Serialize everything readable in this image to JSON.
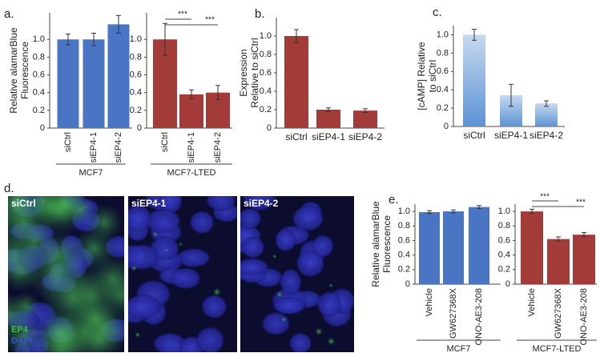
{
  "chart_data": [
    {
      "type": "bar",
      "panel": "a.",
      "ylabel": [
        "Relative alamarBlue",
        "Fluorescence"
      ],
      "group": "MCF7",
      "categories": [
        "siCtrl",
        "siEP4-1",
        "siEP4-2"
      ],
      "values": [
        1.0,
        1.0,
        1.17
      ],
      "errors": [
        0.06,
        0.07,
        0.1
      ],
      "color": "#4a74c4",
      "ylim": [
        0,
        1.3
      ],
      "yticks": [
        0,
        0.2,
        0.4,
        0.6,
        0.8,
        {
          "value": 1,
          "label": "1.0"
        }
      ]
    },
    {
      "type": "bar",
      "group": "MCF7-LTED",
      "categories": [
        "siCtrl",
        "siEP4-1",
        "siEP4-2"
      ],
      "values": [
        1.0,
        0.38,
        0.4
      ],
      "errors": [
        0.18,
        0.05,
        0.08
      ],
      "color": "#a33b38",
      "ylim": [
        0,
        1.3
      ],
      "yticks": [
        0,
        0.2,
        0.4,
        0.6,
        0.8,
        {
          "value": 1,
          "label": "1.0"
        }
      ],
      "brackets": [
        {
          "label": "***",
          "categories": [
            "siCtrl",
            "siEP4-1"
          ]
        },
        {
          "label": "***",
          "categories": [
            "siCtrl",
            "siEP4-2"
          ]
        }
      ]
    },
    {
      "type": "bar",
      "panel": "b.",
      "ylabel": [
        "Expression",
        "Relative to siCtrl"
      ],
      "categories": [
        "siCtrl",
        "siEP4-1",
        "siEP4-2"
      ],
      "values": [
        1.0,
        0.2,
        0.19
      ],
      "errors": [
        0.07,
        0.02,
        0.02
      ],
      "color": "#a33b38",
      "ylim": [
        0,
        1.2
      ],
      "yticks": [
        0,
        0.2,
        0.4,
        0.6,
        0.8,
        {
          "value": 1,
          "label": "1.0"
        }
      ]
    },
    {
      "type": "bar",
      "panel": "c.",
      "ylabel": [
        "[cAMP] Relative",
        "to siCtrl"
      ],
      "categories": [
        "siCtrl",
        "siEP4-1",
        "siEP4-2"
      ],
      "values": [
        1.0,
        0.34,
        0.25
      ],
      "errors": [
        0.06,
        0.12,
        0.03
      ],
      "color": "#5b93d3",
      "fill_style": "gradient",
      "ylim": [
        0,
        1.1
      ],
      "yticks": [
        0,
        0.2,
        0.4,
        0.6,
        0.8,
        {
          "value": 1,
          "label": "1.0"
        }
      ]
    },
    {
      "type": "bar",
      "panel": "e.",
      "ylabel": [
        "Relative alamarBlue",
        "Fluorescence"
      ],
      "group": "MCF7",
      "categories": [
        "Vehicle",
        "GW627368X",
        "ONO-AE3-208"
      ],
      "values": [
        0.99,
        1.0,
        1.06
      ],
      "errors": [
        0.02,
        0.02,
        0.02
      ],
      "color": "#4a74c4",
      "ylim": [
        0,
        1.1
      ],
      "yticks": [
        0,
        0.2,
        0.4,
        0.6,
        0.8,
        {
          "value": 1,
          "label": "1.0"
        }
      ]
    },
    {
      "type": "bar",
      "group": "MCF7-LTED",
      "categories": [
        "Vehicle",
        "GW627368X",
        "ONO-AE3-208"
      ],
      "values": [
        1.0,
        0.62,
        0.68
      ],
      "errors": [
        0.03,
        0.03,
        0.03
      ],
      "color": "#a33b38",
      "ylim": [
        0,
        1.1
      ],
      "yticks": [
        0,
        0.2,
        0.4,
        0.6,
        0.8,
        {
          "value": 1,
          "label": "1.0"
        }
      ],
      "brackets": [
        {
          "label": "***",
          "categories": [
            "Vehicle",
            "GW627368X"
          ]
        },
        {
          "label": "***",
          "categories": [
            "Vehicle",
            "ONO-AE3-208"
          ]
        }
      ]
    }
  ],
  "micrographs": {
    "panel": "d.",
    "tiles": [
      {
        "label": "siCtrl"
      },
      {
        "label": "siEP4-1"
      },
      {
        "label": "siEP4-2"
      }
    ],
    "stains": [
      {
        "label": "EP4",
        "color": "#3fbf4a"
      },
      {
        "label": "DAPI",
        "color": "#3a4fd8"
      }
    ]
  }
}
